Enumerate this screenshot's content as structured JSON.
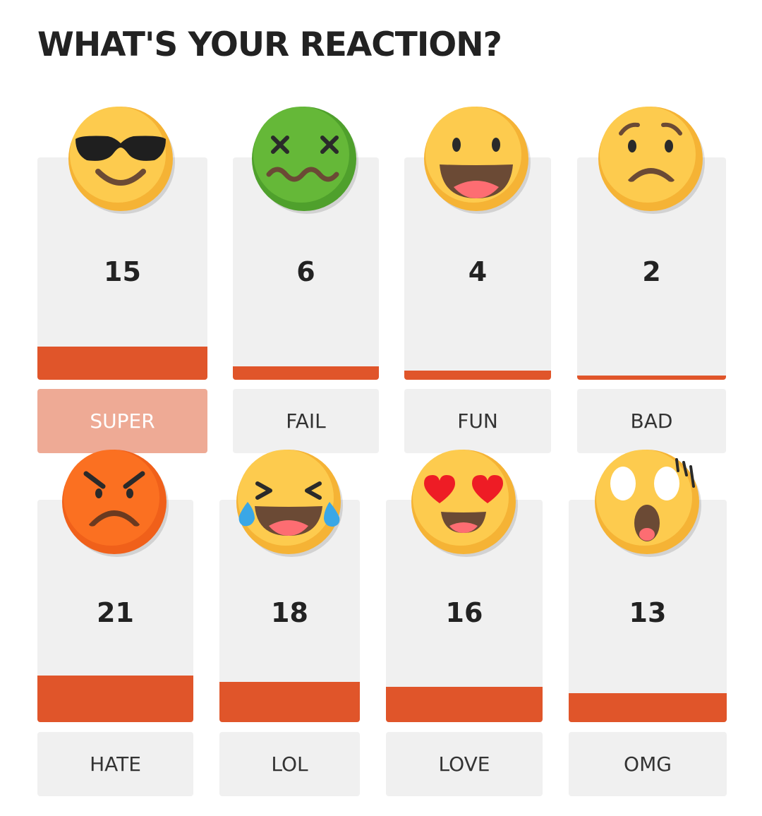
{
  "header": {
    "title": "WHAT'S YOUR REACTION?"
  },
  "colors": {
    "bar": "#e0552a",
    "selected_label_bg": "#eeaa95"
  },
  "reactions": [
    {
      "label": "SUPER",
      "count": "15",
      "icon": "cool-sunglasses-emoji-icon",
      "fill_fraction": 0.15,
      "selected": true
    },
    {
      "label": "FAIL",
      "count": "6",
      "icon": "sick-dizzy-emoji-icon",
      "fill_fraction": 0.06,
      "selected": false
    },
    {
      "label": "FUN",
      "count": "4",
      "icon": "grinning-emoji-icon",
      "fill_fraction": 0.04,
      "selected": false
    },
    {
      "label": "BAD",
      "count": "2",
      "icon": "worried-frown-emoji-icon",
      "fill_fraction": 0.02,
      "selected": false
    },
    {
      "label": "HATE",
      "count": "21",
      "icon": "angry-emoji-icon",
      "fill_fraction": 0.21,
      "selected": false
    },
    {
      "label": "LOL",
      "count": "18",
      "icon": "tears-of-joy-emoji-icon",
      "fill_fraction": 0.18,
      "selected": false
    },
    {
      "label": "LOVE",
      "count": "16",
      "icon": "heart-eyes-emoji-icon",
      "fill_fraction": 0.16,
      "selected": false
    },
    {
      "label": "OMG",
      "count": "13",
      "icon": "shocked-emoji-icon",
      "fill_fraction": 0.13,
      "selected": false
    }
  ]
}
